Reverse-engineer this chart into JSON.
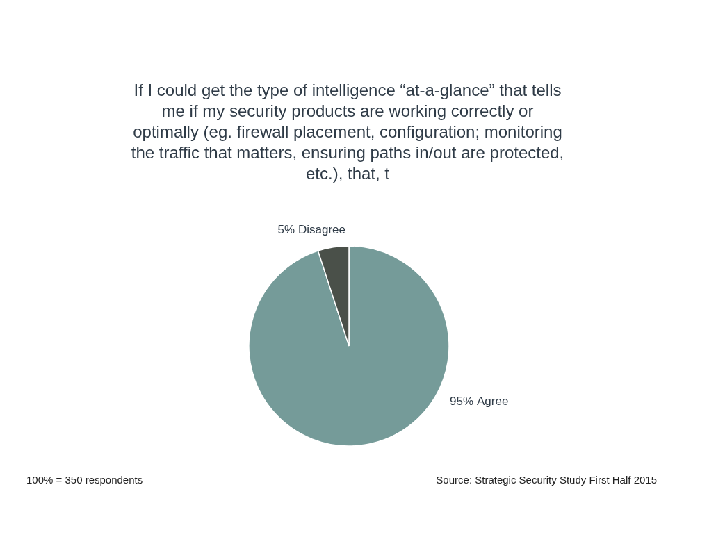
{
  "chart_data": {
    "type": "pie",
    "title": "If I could get the type of intelligence “at-a-glance” that tells\nme if my security products are working correctly or\noptimally (eg. firewall placement, configuration; monitoring\nthe traffic that matters, ensuring paths in/out are protected,\netc.), that, t",
    "categories": [
      "Agree",
      "Disagree"
    ],
    "values": [
      95,
      5
    ],
    "colors": [
      "#759b99",
      "#4a5049"
    ],
    "value_labels": [
      "95%",
      "5%"
    ],
    "annotations": [
      "100% = 350 respondents",
      "Source: Strategic Security Study First Half 2015"
    ]
  }
}
